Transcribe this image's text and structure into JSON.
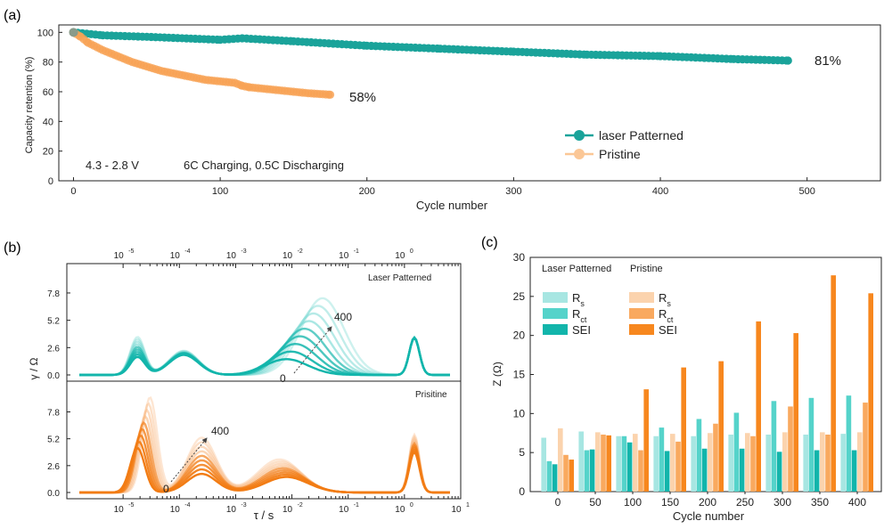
{
  "panel_a": {
    "label": "(a)",
    "ylabel": "Capacity retention (%)",
    "xlabel": "Cycle number",
    "xticks": [
      "0",
      "100",
      "200",
      "300",
      "400",
      "500"
    ],
    "yticks": [
      "0",
      "20",
      "40",
      "60",
      "80",
      "100"
    ],
    "annot_81": "81%",
    "annot_58": "58%",
    "condition_voltage": "4.3 - 2.8 V",
    "condition_rate": "6C Charging, 0.5C Discharging",
    "legend_laser": "laser Patterned",
    "legend_pristine": "Pristine",
    "color_laser": "#1aa39a",
    "color_pristine": "#f7a255"
  },
  "panel_b": {
    "label": "(b)",
    "ylabel": "γ / Ω",
    "xlabel": "τ / s",
    "top_label": "Laser Patterned",
    "bottom_label": "Prisitine",
    "arrow_top_end": "400",
    "arrow_top_start": "0",
    "arrow_bot_end": "400",
    "arrow_bot_start": "0",
    "yticks": [
      "0.0",
      "2.6",
      "5.2",
      "7.8"
    ],
    "xtick_exp": [
      "-5",
      "-4",
      "-3",
      "-2",
      "-1",
      "0",
      "1"
    ]
  },
  "panel_c": {
    "label": "(c)",
    "ylabel": "Z (Ω)",
    "xlabel": "Cycle number",
    "header_laser": "Laser Patterned",
    "header_pristine": "Pristine",
    "yticks": [
      "0",
      "5",
      "10",
      "15",
      "20",
      "25",
      "30"
    ],
    "legend_laser": [
      {
        "main": "R",
        "sub": "s",
        "color": "#a7e6e2"
      },
      {
        "main": "R",
        "sub": "ct",
        "color": "#55d3ca"
      },
      {
        "main": "SEI",
        "sub": "",
        "color": "#12b5ab"
      }
    ],
    "legend_pristine": [
      {
        "main": "R",
        "sub": "s",
        "color": "#fbd3ad"
      },
      {
        "main": "R",
        "sub": "ct",
        "color": "#f9a95f"
      },
      {
        "main": "SEI",
        "sub": "",
        "color": "#f7871e"
      }
    ]
  },
  "chart_data": [
    {
      "type": "line",
      "title": "",
      "xlabel": "Cycle number",
      "ylabel": "Capacity retention (%)",
      "xlim": [
        -10,
        550
      ],
      "ylim": [
        0,
        105
      ],
      "series": [
        {
          "name": "laser Patterned",
          "x": [
            0,
            20,
            50,
            100,
            115,
            150,
            200,
            250,
            300,
            350,
            400,
            450,
            487
          ],
          "y": [
            100,
            98,
            97,
            95,
            96,
            94,
            91,
            89,
            87,
            85,
            84,
            82,
            81
          ]
        },
        {
          "name": "Pristine",
          "x": [
            0,
            5,
            10,
            20,
            30,
            40,
            50,
            60,
            70,
            80,
            90,
            100,
            110,
            115,
            120,
            130,
            140,
            150,
            160,
            175
          ],
          "y": [
            100,
            97,
            93,
            88,
            84,
            80,
            77,
            74,
            72,
            70,
            68,
            67,
            66,
            64,
            63,
            62,
            61,
            60,
            59,
            58
          ]
        }
      ]
    },
    {
      "type": "line",
      "title": "Laser Patterned",
      "xlabel": "τ / s",
      "ylabel": "γ / Ω",
      "xscale": "log",
      "xlim": [
        1e-06,
        10
      ],
      "ylim": [
        0,
        8.5
      ],
      "series": [
        {
          "name": "0",
          "tau_peaks": [
            1.8e-05,
            0.00012,
            0.008,
            1.5
          ],
          "heights": [
            1.7,
            1.9,
            1.5,
            3.5
          ]
        },
        {
          "name": "400",
          "tau_peaks": [
            1.8e-05,
            0.00012,
            0.035,
            1.5
          ],
          "heights": [
            3.6,
            2.3,
            7.3,
            3.6
          ]
        }
      ]
    },
    {
      "type": "line",
      "title": "Prisitine",
      "xlabel": "τ / s",
      "ylabel": "γ / Ω",
      "xscale": "log",
      "xlim": [
        1e-06,
        10
      ],
      "ylim": [
        0,
        9
      ],
      "series": [
        {
          "name": "0",
          "tau_peaks": [
            1.8e-05,
            0.00025,
            0.008,
            1.5
          ],
          "heights": [
            4.3,
            1.8,
            1.5,
            3.9
          ]
        },
        {
          "name": "400",
          "tau_peaks": [
            3e-05,
            0.00025,
            0.006,
            1.5
          ],
          "heights": [
            9.2,
            5.3,
            3.2,
            5.6
          ]
        }
      ]
    },
    {
      "type": "bar",
      "xlabel": "Cycle number",
      "ylabel": "Z (Ω)",
      "ylim": [
        0,
        30
      ],
      "categories": [
        "0",
        "50",
        "100",
        "150",
        "200",
        "250",
        "300",
        "350",
        "400"
      ],
      "series": [
        {
          "name": "Laser Patterned Rs",
          "values": [
            6.9,
            7.7,
            7.1,
            7.1,
            7.1,
            7.3,
            7.3,
            7.3,
            7.4
          ]
        },
        {
          "name": "Laser Patterned Rct",
          "values": [
            3.9,
            5.3,
            7.1,
            8.2,
            9.3,
            10.1,
            11.6,
            12.0,
            12.3
          ]
        },
        {
          "name": "Laser Patterned SEI",
          "values": [
            3.5,
            5.4,
            6.3,
            5.2,
            5.5,
            5.5,
            5.1,
            5.3,
            5.3
          ]
        },
        {
          "name": "Pristine Rs",
          "values": [
            8.1,
            7.6,
            7.4,
            7.4,
            7.5,
            7.5,
            7.6,
            7.6,
            7.6
          ]
        },
        {
          "name": "Pristine Rct",
          "values": [
            4.7,
            7.3,
            5.3,
            6.4,
            8.7,
            7.1,
            10.9,
            7.3,
            11.4
          ]
        },
        {
          "name": "Pristine SEI",
          "values": [
            4.1,
            7.2,
            13.1,
            15.9,
            16.7,
            21.8,
            20.3,
            27.7,
            25.4
          ]
        }
      ]
    }
  ]
}
